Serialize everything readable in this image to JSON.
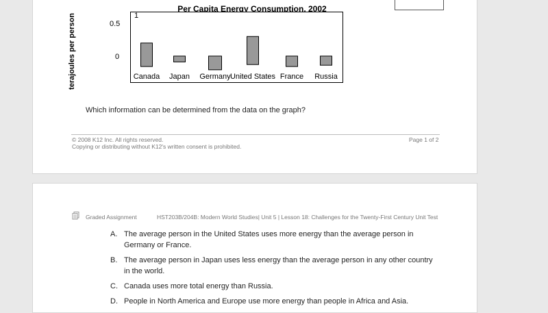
{
  "page1": {
    "chart_data": {
      "type": "bar",
      "title": "Per Capita Energy Consumption, 2002",
      "ylabel": "terajoules per person",
      "yticks": [
        "1",
        "0.5",
        "0"
      ],
      "categories": [
        "Canada",
        "Japan",
        "Germany",
        "United States",
        "France",
        "Russia"
      ],
      "series": [
        {
          "low": [
            -0.14,
            -0.07,
            -0.19,
            -0.11,
            -0.14,
            -0.12
          ],
          "high": [
            0.22,
            0.02,
            0.02,
            0.32,
            0.02,
            0.02
          ]
        }
      ],
      "ylim": [
        -0.38,
        0.69
      ],
      "bar_color": "#999999"
    },
    "question": "Which information can be determined from the data on the graph?",
    "footer": {
      "copyright": "© 2008 K12 Inc. All rights reserved.",
      "notice": "Copying or distributing without K12's written consent is prohibited.",
      "page": "Page 1 of 2"
    }
  },
  "page2": {
    "header": {
      "label": "Graded Assignment",
      "course": "HST203B/204B: Modern World Studies| Unit 5 | Lesson 18: Challenges for the Twenty-First Century Unit Test"
    },
    "answers": [
      {
        "letter": "A.",
        "text": "The average person in the United States uses more energy than the average person in Germany or France."
      },
      {
        "letter": "B.",
        "text": "The average person in Japan uses less energy than the average person in any other country in the world."
      },
      {
        "letter": "C.",
        "text": "Canada uses more total energy than Russia."
      },
      {
        "letter": "D.",
        "text": "People in North America and Europe use more energy than people in Africa and Asia."
      }
    ]
  }
}
